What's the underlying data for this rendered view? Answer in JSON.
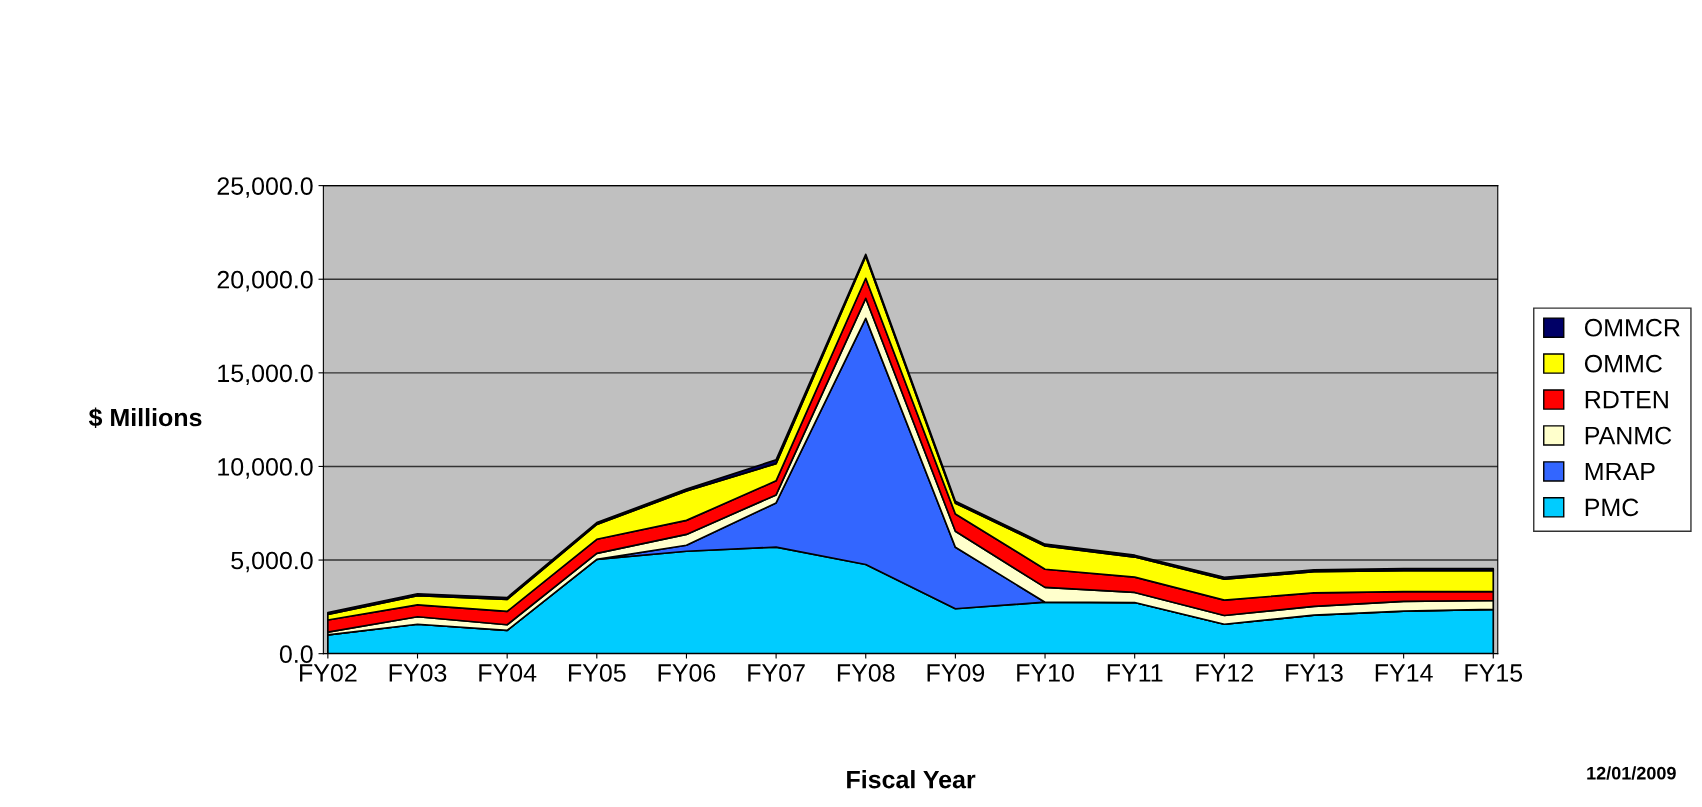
{
  "chart_data": {
    "type": "area",
    "stacked": true,
    "xlabel": "Fiscal Year",
    "ylabel": "$ Millions",
    "categories": [
      "FY02",
      "FY03",
      "FY04",
      "FY05",
      "FY06",
      "FY07",
      "FY08",
      "FY09",
      "FY10",
      "FY11",
      "FY12",
      "FY13",
      "FY14",
      "FY15"
    ],
    "series": [
      {
        "name": "PMC",
        "color": "#00ccff",
        "values": [
          1000,
          1570,
          1245,
          5040,
          5470,
          5690,
          4760,
          2400,
          2750,
          2730,
          1570,
          2060,
          2270,
          2370
        ]
      },
      {
        "name": "MRAP",
        "color": "#3366ff",
        "values": [
          0,
          0,
          0,
          0,
          320,
          2360,
          13150,
          3280,
          0,
          0,
          0,
          0,
          0,
          0
        ]
      },
      {
        "name": "PANMC",
        "color": "#ffffcc",
        "values": [
          150,
          400,
          300,
          320,
          580,
          430,
          1070,
          860,
          790,
          540,
          470,
          470,
          520,
          470
        ]
      },
      {
        "name": "RDTEN",
        "color": "#ff0000",
        "values": [
          650,
          640,
          710,
          750,
          750,
          750,
          1070,
          920,
          970,
          820,
          820,
          720,
          520,
          470
        ]
      },
      {
        "name": "OMMC",
        "color": "#ffff00",
        "values": [
          300,
          490,
          640,
          790,
          1570,
          920,
          1180,
          580,
          1240,
          1070,
          1120,
          1130,
          1130,
          1130
        ]
      },
      {
        "name": "OMMCR",
        "color": "#000066",
        "values": [
          100,
          100,
          100,
          100,
          100,
          200,
          100,
          100,
          100,
          100,
          100,
          100,
          100,
          100
        ]
      }
    ],
    "ylim": [
      0,
      25000
    ],
    "yticks": [
      {
        "value": 0,
        "label": "0.0"
      },
      {
        "value": 5000,
        "label": "5,000.0"
      },
      {
        "value": 10000,
        "label": "10,000.0"
      },
      {
        "value": 15000,
        "label": "15,000.0"
      },
      {
        "value": 20000,
        "label": "20,000.0"
      },
      {
        "value": 25000,
        "label": "25,000.0"
      }
    ],
    "grid": "y",
    "legend": "right",
    "annotations": [
      "12/01/2009"
    ]
  }
}
